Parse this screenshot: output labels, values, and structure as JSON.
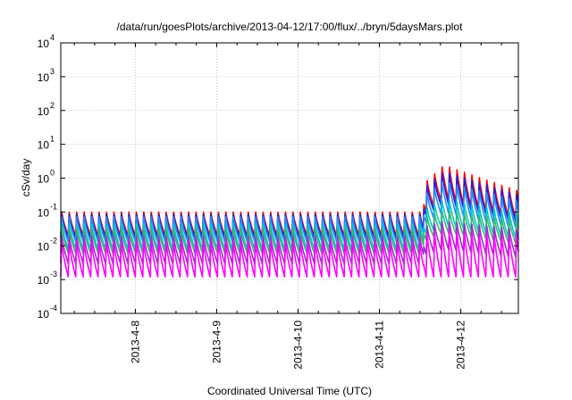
{
  "chart_data": {
    "type": "line",
    "title": "/data/run/goesPlots/archive/2013-04-12/17:00/flux/../bryn/5daysMars.plot",
    "xlabel": "Coordinated Universal Time (UTC)",
    "ylabel": "cSv/day",
    "yscale": "log",
    "ylim": [
      0.0001,
      10000
    ],
    "xlim": [
      "2013-04-07 02:00",
      "2013-04-12 17:00"
    ],
    "x_ticks": [
      "2013-4-8",
      "2013-4-9",
      "2013-4-10",
      "2013-4-11",
      "2013-4-12"
    ],
    "y_ticks": [
      {
        "base": "10",
        "exp": "4"
      },
      {
        "base": "10",
        "exp": "3"
      },
      {
        "base": "10",
        "exp": "2"
      },
      {
        "base": "10",
        "exp": "1"
      },
      {
        "base": "10",
        "exp": "0"
      },
      {
        "base": "10",
        "exp": "-1"
      },
      {
        "base": "10",
        "exp": "-2"
      },
      {
        "base": "10",
        "exp": "-3"
      },
      {
        "base": "10",
        "exp": "-4"
      }
    ],
    "grid": true,
    "event_start": "2013-04-11 13:00",
    "peak_time": "2013-04-11 19:00",
    "series": [
      {
        "color": "#ff0000",
        "quiet_max": 0.11,
        "quiet_min": 0.02,
        "storm_max": 2.8,
        "storm_min": 0.25
      },
      {
        "color": "#2222dd",
        "quiet_max": 0.095,
        "quiet_min": 0.017,
        "storm_max": 1.8,
        "storm_min": 0.18
      },
      {
        "color": "#1f8fff",
        "quiet_max": 0.08,
        "quiet_min": 0.013,
        "storm_max": 0.9,
        "storm_min": 0.1
      },
      {
        "color": "#00c8c8",
        "quiet_max": 0.05,
        "quiet_min": 0.008,
        "storm_max": 0.25,
        "storm_min": 0.04
      },
      {
        "color": "#3cb371",
        "quiet_max": 0.035,
        "quiet_min": 0.006,
        "storm_max": 0.12,
        "storm_min": 0.025
      },
      {
        "color": "#9932cc",
        "quiet_max": 0.022,
        "quiet_min": 0.003,
        "storm_max": 0.06,
        "storm_min": 0.008
      },
      {
        "color": "#ff00ff",
        "quiet_max": 0.015,
        "quiet_min": 0.0012,
        "storm_max": 0.035,
        "storm_min": 0.0012
      }
    ]
  }
}
